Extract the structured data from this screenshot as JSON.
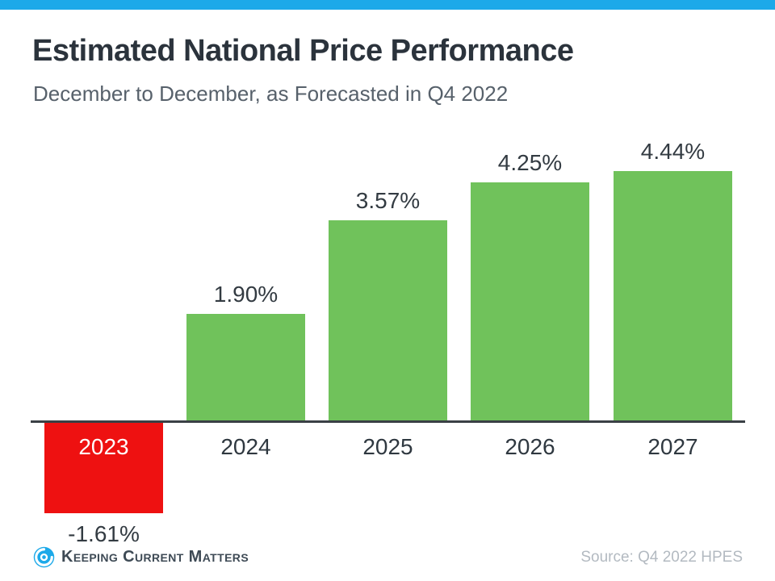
{
  "theme": {
    "accent_cyan": "#1CA9E9",
    "title_color": "#2B333C",
    "subtitle_color": "#57616B",
    "axis_color": "#3A4045",
    "label_color": "#333B42",
    "source_color": "#B3BAC1",
    "logo_text_color": "#3E4A55"
  },
  "header": {
    "title": "Estimated National Price Performance",
    "subtitle": "December to December, as Forecasted in Q4 2022"
  },
  "chart_data": {
    "type": "bar",
    "title": "Estimated National Price Performance",
    "subtitle": "December to December, as Forecasted in Q4 2022",
    "categories": [
      "2023",
      "2024",
      "2025",
      "2026",
      "2027"
    ],
    "values": [
      -1.61,
      1.9,
      3.57,
      4.25,
      4.44
    ],
    "display_values": [
      "-1.61%",
      "1.90%",
      "3.57%",
      "4.25%",
      "4.44%"
    ],
    "xlabel": "",
    "ylabel": "",
    "ylim": [
      -2,
      5
    ],
    "baseline": 0,
    "grid": false,
    "legend": "none",
    "positive_color": "#70C25B",
    "negative_color": "#EE1111",
    "negative_category_label_inside_bar": true
  },
  "footer": {
    "logo_text": "Keeping Current Matters",
    "source": "Source: Q4 2022 HPES"
  }
}
